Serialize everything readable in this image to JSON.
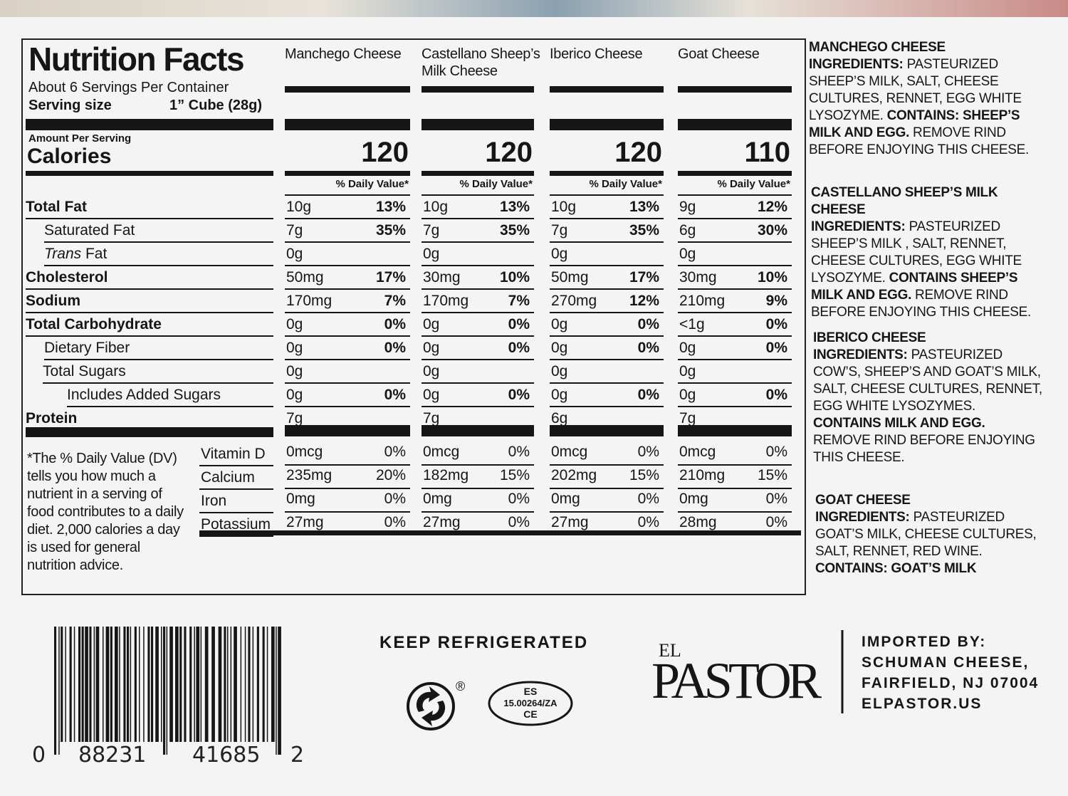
{
  "label": {
    "title": "Nutrition Facts",
    "servings": "About 6 Servings Per Container",
    "serving_size_label": "Serving size",
    "serving_size": "1” Cube (28g)",
    "amount_per_serving": "Amount Per Serving",
    "calories_label": "Calories",
    "daily_value_header": "% Daily Value*",
    "nutrients": [
      "Total Fat",
      "Saturated Fat",
      {
        "italic": "Trans",
        "text": "Fat"
      },
      "Cholesterol",
      "Sodium",
      "Total Carbohydrate",
      "Dietary Fiber",
      "Total Sugars",
      "Includes Added Sugars",
      "Protein"
    ],
    "vitamins": [
      "Vitamin D",
      "Calcium",
      "Iron",
      "Potassium"
    ],
    "footnote": "*The % Daily Value (DV) tells you how much a nutrient in a serving of food contributes to a daily diet. 2,000 calories a day is used for general nutrition advice.",
    "products": [
      {
        "name": "Manchego Cheese",
        "calories": "120",
        "nutrients": [
          [
            "10g",
            "13%"
          ],
          [
            "7g",
            "35%"
          ],
          [
            "0g"
          ],
          [
            "50mg",
            "17%"
          ],
          [
            "170mg",
            "7%"
          ],
          [
            "0g",
            "0%"
          ],
          [
            "0g",
            "0%"
          ],
          [
            "0g"
          ],
          [
            "0g",
            "0%"
          ],
          [
            "7g"
          ]
        ],
        "vitamins": [
          [
            "0mcg",
            "0%"
          ],
          [
            "235mg",
            "20%"
          ],
          [
            "0mg",
            "0%"
          ],
          [
            "27mg",
            "0%"
          ]
        ]
      },
      {
        "name": "Castellano Sheep’s Milk Cheese",
        "calories": "120",
        "nutrients": [
          [
            "10g",
            "13%"
          ],
          [
            "7g",
            "35%"
          ],
          [
            "0g"
          ],
          [
            "30mg",
            "10%"
          ],
          [
            "170mg",
            "7%"
          ],
          [
            "0g",
            "0%"
          ],
          [
            "0g",
            "0%"
          ],
          [
            "0g"
          ],
          [
            "0g",
            "0%"
          ],
          [
            "7g"
          ]
        ],
        "vitamins": [
          [
            "0mcg",
            "0%"
          ],
          [
            "182mg",
            "15%"
          ],
          [
            "0mg",
            "0%"
          ],
          [
            "27mg",
            "0%"
          ]
        ]
      },
      {
        "name": "Iberico Cheese",
        "calories": "120",
        "nutrients": [
          [
            "10g",
            "13%"
          ],
          [
            "7g",
            "35%"
          ],
          [
            "0g"
          ],
          [
            "50mg",
            "17%"
          ],
          [
            "270mg",
            "12%"
          ],
          [
            "0g",
            "0%"
          ],
          [
            "0g",
            "0%"
          ],
          [
            "0g"
          ],
          [
            "0g",
            "0%"
          ],
          [
            "6g"
          ]
        ],
        "vitamins": [
          [
            "0mcg",
            "0%"
          ],
          [
            "202mg",
            "15%"
          ],
          [
            "0mg",
            "0%"
          ],
          [
            "27mg",
            "0%"
          ]
        ]
      },
      {
        "name": "Goat Cheese",
        "calories": "110",
        "nutrients": [
          [
            "9g",
            "12%"
          ],
          [
            "6g",
            "30%"
          ],
          [
            "0g"
          ],
          [
            "30mg",
            "10%"
          ],
          [
            "210mg",
            "9%"
          ],
          [
            "<1g",
            "0%"
          ],
          [
            "0g",
            "0%"
          ],
          [
            "0g"
          ],
          [
            "0g",
            "0%"
          ],
          [
            "7g"
          ]
        ],
        "vitamins": [
          [
            "0mcg",
            "0%"
          ],
          [
            "210mg",
            "15%"
          ],
          [
            "0mg",
            "0%"
          ],
          [
            "28mg",
            "0%"
          ]
        ]
      }
    ]
  },
  "ingredients": [
    {
      "heading": "MANCHEGO CHEESE",
      "label": "INGREDIENTS:",
      "text": "PASTEURIZED SHEEP’S MILK, SALT, CHEESE CULTURES, RENNET, EGG WHITE LYSOZYME.",
      "contains": "CONTAINS: SHEEP’S MILK AND EGG.",
      "after": "REMOVE RIND BEFORE ENJOYING THIS CHEESE."
    },
    {
      "heading": "CASTELLANO SHEEP’S MILK CHEESE",
      "label": "INGREDIENTS:",
      "text": "PASTEURIZED SHEEP’S MILK , SALT, RENNET, CHEESE CULTURES, EGG WHITE LYSOZYME.",
      "contains": "CONTAINS SHEEP’S MILK AND EGG.",
      "after": "REMOVE RIND BEFORE ENJOYING THIS CHEESE."
    },
    {
      "heading": "IBERICO CHEESE",
      "label": "INGREDIENTS:",
      "text": "PASTEURIZED COW’S, SHEEP’S AND GOAT’S MILK, SALT, CHEESE CULTURES, RENNET, EGG WHITE LYSOZYMES.",
      "contains": "CONTAINS MILK AND EGG.",
      "after": "REMOVE RIND BEFORE ENJOYING THIS CHEESE."
    },
    {
      "heading": "GOAT CHEESE",
      "label": "INGREDIENTS:",
      "text": "PASTEURIZED GOAT’S MILK, CHEESE CULTURES, SALT, RENNET, RED WINE.",
      "contains": "CONTAINS: GOAT’S MILK"
    }
  ],
  "footer": {
    "barcode": [
      "0",
      "88231",
      "41685",
      "2"
    ],
    "storage": "KEEP REFRIGERATED",
    "registered": "®",
    "health_mark": [
      "ES",
      "15.00264/ZA",
      "CE"
    ],
    "logo": {
      "small": "EL",
      "large": "PASTOR"
    },
    "importer": [
      "IMPORTED BY:",
      "SCHUMAN CHEESE,",
      "FAIRFIELD, NJ 07004",
      "ELPASTOR.US"
    ]
  }
}
